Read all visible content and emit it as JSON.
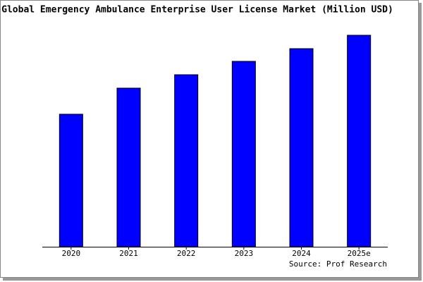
{
  "chart_data": {
    "type": "bar",
    "title": "Global Emergency Ambulance Enterprise User License Market (Million USD)",
    "categories": [
      "2020",
      "2021",
      "2022",
      "2023",
      "2024",
      "2025e"
    ],
    "values": [
      188,
      225,
      244,
      263,
      281,
      300
    ],
    "color": "#0000ff",
    "source": "Source: Prof Research"
  }
}
